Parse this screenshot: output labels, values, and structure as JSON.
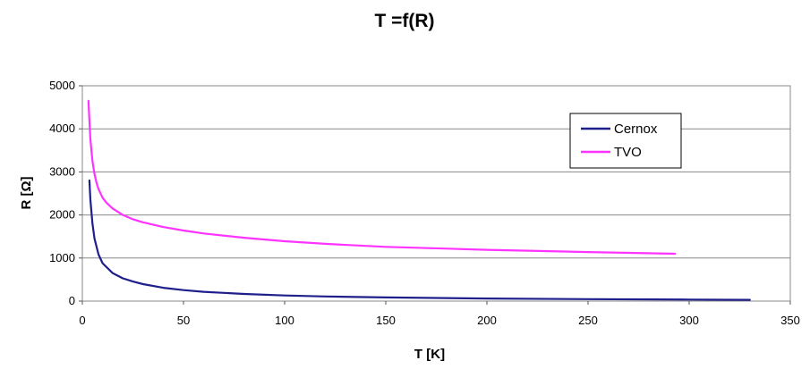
{
  "chart_data": {
    "type": "line",
    "title": "T =f(R)",
    "xlabel": "T [K]",
    "ylabel": "R [Ω]",
    "xlim": [
      0,
      350
    ],
    "ylim": [
      0,
      5000
    ],
    "x_ticks": [
      0,
      50,
      100,
      150,
      200,
      250,
      300,
      350
    ],
    "y_ticks": [
      0,
      1000,
      2000,
      3000,
      4000,
      5000
    ],
    "grid": "horizontal",
    "legend_position": "top-right",
    "series": [
      {
        "name": "Cernox",
        "color": "#1f1f8c",
        "x": [
          3.5,
          4,
          5,
          6,
          8,
          10,
          15,
          20,
          25,
          30,
          40,
          50,
          60,
          80,
          100,
          120,
          150,
          200,
          250,
          300,
          330
        ],
        "y": [
          2800,
          2350,
          1800,
          1450,
          1080,
          880,
          650,
          530,
          455,
          395,
          310,
          255,
          215,
          165,
          130,
          108,
          85,
          60,
          45,
          35,
          30
        ]
      },
      {
        "name": "TVO",
        "color": "#ff33ff",
        "x": [
          3,
          4,
          5,
          6,
          7,
          8,
          10,
          12,
          15,
          20,
          25,
          30,
          40,
          50,
          60,
          80,
          100,
          120,
          150,
          200,
          250,
          293
        ],
        "y": [
          4650,
          3750,
          3250,
          2950,
          2750,
          2600,
          2400,
          2280,
          2150,
          2000,
          1900,
          1830,
          1720,
          1640,
          1570,
          1470,
          1390,
          1330,
          1260,
          1190,
          1140,
          1100
        ]
      }
    ]
  }
}
